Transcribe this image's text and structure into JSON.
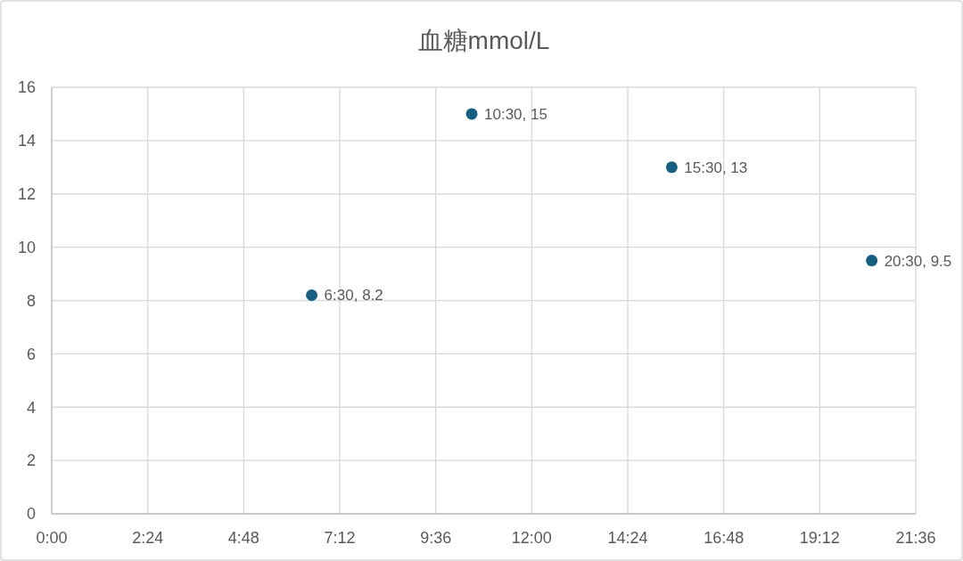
{
  "chart_data": {
    "type": "scatter",
    "title": "血糖mmol/L",
    "x": [
      6.5,
      10.5,
      15.5,
      20.5
    ],
    "series": [
      {
        "color": "#156082",
        "values": [
          8.2,
          15,
          13,
          9.5
        ],
        "value_labels": [
          "6:30, 8.2",
          "10:30, 15",
          "15:30, 13",
          "20:30, 9.5"
        ]
      }
    ],
    "xlim": [
      0,
      21.6
    ],
    "xticks": [
      {
        "value": 0,
        "label": "0:00"
      },
      {
        "value": 2.4,
        "label": "2:24"
      },
      {
        "value": 4.8,
        "label": "4:48"
      },
      {
        "value": 7.2,
        "label": "7:12"
      },
      {
        "value": 9.6,
        "label": "9:36"
      },
      {
        "value": 12,
        "label": "12:00"
      },
      {
        "value": 14.4,
        "label": "14:24"
      },
      {
        "value": 16.8,
        "label": "16:48"
      },
      {
        "value": 19.2,
        "label": "19:12"
      },
      {
        "value": 21.6,
        "label": "21:36"
      }
    ],
    "ylim": [
      0,
      16
    ],
    "yticks": [
      0,
      2,
      4,
      6,
      8,
      10,
      12,
      14,
      16
    ],
    "grid": true,
    "marker": "circle"
  }
}
